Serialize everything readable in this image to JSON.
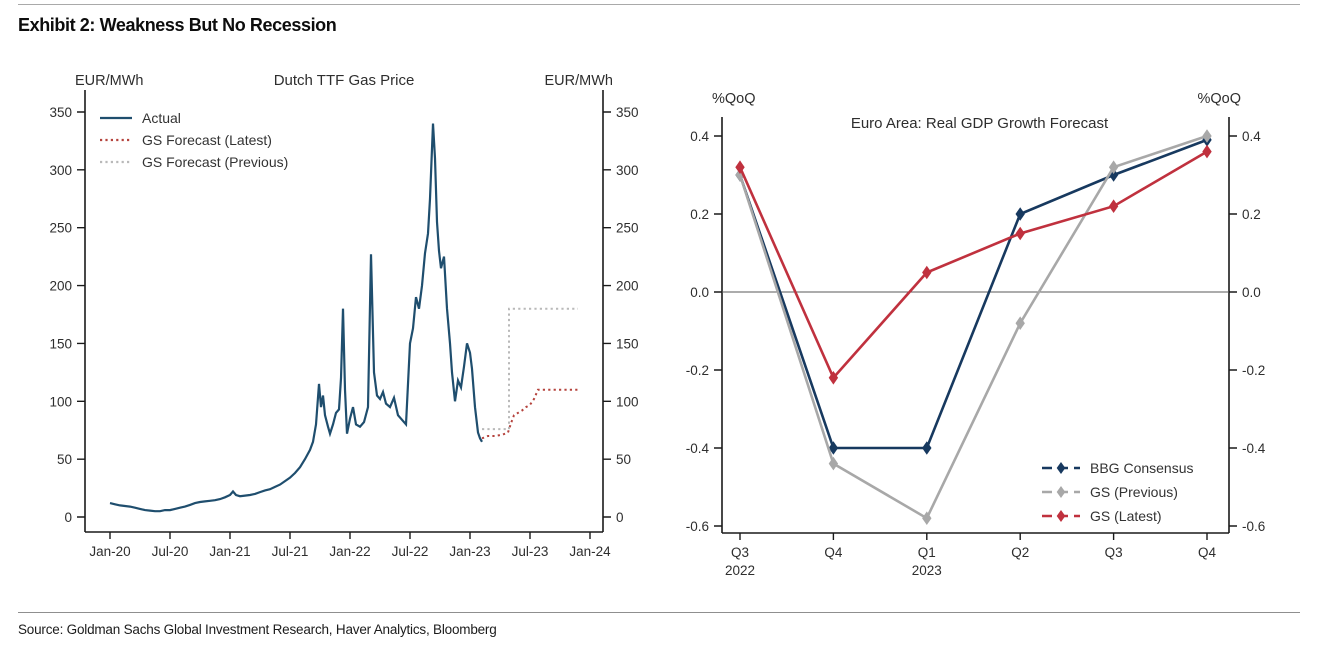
{
  "header": {
    "title": "Exhibit 2: Weakness But No Recession"
  },
  "footer": {
    "source": "Source: Goldman Sachs Global Investment Research, Haver Analytics, Bloomberg"
  },
  "chart_data": [
    {
      "id": "ttf",
      "type": "line",
      "title": "Dutch TTF Gas Price",
      "unit_label_left": "EUR/MWh",
      "unit_label_right": "EUR/MWh",
      "x_tick_labels": [
        "Jan-20",
        "Jul-20",
        "Jan-21",
        "Jul-21",
        "Jan-22",
        "Jul-22",
        "Jan-23",
        "Jul-23",
        "Jan-24"
      ],
      "x_unit": "months_since_Jan-2020",
      "xlim": [
        0,
        49.3
      ],
      "ylim": [
        0,
        350
      ],
      "y_ticks": [
        0,
        50,
        100,
        150,
        200,
        250,
        300,
        350
      ],
      "grid": false,
      "legend_position": "top-left",
      "series": [
        {
          "name": "Actual",
          "color": "#1f4e6e",
          "line_style": "solid",
          "points": [
            [
              0,
              12
            ],
            [
              0.5,
              11
            ],
            [
              1,
              10
            ],
            [
              1.5,
              9.5
            ],
            [
              2,
              9
            ],
            [
              2.5,
              8
            ],
            [
              3,
              7
            ],
            [
              3.5,
              6
            ],
            [
              4,
              5.5
            ],
            [
              4.5,
              5
            ],
            [
              5,
              5
            ],
            [
              5.5,
              6
            ],
            [
              6,
              6
            ],
            [
              6.5,
              7
            ],
            [
              7,
              8
            ],
            [
              7.5,
              9
            ],
            [
              8,
              10.5
            ],
            [
              8.5,
              12
            ],
            [
              9,
              13
            ],
            [
              9.5,
              13.5
            ],
            [
              10,
              14
            ],
            [
              10.5,
              14.5
            ],
            [
              11,
              15.5
            ],
            [
              11.5,
              17
            ],
            [
              12,
              19
            ],
            [
              12.3,
              22
            ],
            [
              12.6,
              19
            ],
            [
              13,
              18
            ],
            [
              13.5,
              18.5
            ],
            [
              14,
              19
            ],
            [
              14.5,
              20
            ],
            [
              15,
              21.5
            ],
            [
              15.5,
              23
            ],
            [
              16,
              24
            ],
            [
              16.5,
              26
            ],
            [
              17,
              28
            ],
            [
              17.5,
              31
            ],
            [
              18,
              34
            ],
            [
              18.5,
              38
            ],
            [
              19,
              43
            ],
            [
              19.5,
              50
            ],
            [
              20,
              58
            ],
            [
              20.3,
              65
            ],
            [
              20.6,
              80
            ],
            [
              20.9,
              115
            ],
            [
              21.1,
              95
            ],
            [
              21.3,
              105
            ],
            [
              21.5,
              88
            ],
            [
              21.8,
              78
            ],
            [
              22,
              72
            ],
            [
              22.3,
              80
            ],
            [
              22.6,
              90
            ],
            [
              22.9,
              93
            ],
            [
              23.1,
              120
            ],
            [
              23.3,
              180
            ],
            [
              23.5,
              110
            ],
            [
              23.7,
              72
            ],
            [
              24,
              85
            ],
            [
              24.3,
              95
            ],
            [
              24.6,
              80
            ],
            [
              25,
              78
            ],
            [
              25.4,
              82
            ],
            [
              25.8,
              95
            ],
            [
              26.1,
              227
            ],
            [
              26.4,
              125
            ],
            [
              26.7,
              105
            ],
            [
              27,
              102
            ],
            [
              27.3,
              108
            ],
            [
              27.6,
              98
            ],
            [
              28,
              95
            ],
            [
              28.4,
              103
            ],
            [
              28.8,
              88
            ],
            [
              29.2,
              84
            ],
            [
              29.6,
              80
            ],
            [
              30,
              150
            ],
            [
              30.3,
              163
            ],
            [
              30.6,
              190
            ],
            [
              30.9,
              180
            ],
            [
              31.2,
              200
            ],
            [
              31.5,
              228
            ],
            [
              31.8,
              245
            ],
            [
              32,
              275
            ],
            [
              32.3,
              340
            ],
            [
              32.5,
              310
            ],
            [
              32.7,
              255
            ],
            [
              32.9,
              230
            ],
            [
              33.1,
              215
            ],
            [
              33.4,
              225
            ],
            [
              33.7,
              180
            ],
            [
              34,
              150
            ],
            [
              34.2,
              125
            ],
            [
              34.5,
              100
            ],
            [
              34.8,
              118
            ],
            [
              35.1,
              112
            ],
            [
              35.4,
              130
            ],
            [
              35.7,
              150
            ],
            [
              36,
              142
            ],
            [
              36.2,
              128
            ],
            [
              36.5,
              95
            ],
            [
              36.8,
              73
            ],
            [
              37,
              68
            ],
            [
              37.2,
              65
            ]
          ]
        },
        {
          "name": "GS Forecast (Latest)",
          "color": "#b5433d",
          "line_style": "dotted",
          "points": [
            [
              37.2,
              68
            ],
            [
              37.8,
              70
            ],
            [
              38.5,
              70
            ],
            [
              39.2,
              71
            ],
            [
              39.8,
              73
            ],
            [
              40.1,
              81
            ],
            [
              40.4,
              88
            ],
            [
              40.8,
              90
            ],
            [
              41.2,
              92
            ],
            [
              41.6,
              95
            ],
            [
              42,
              97
            ],
            [
              42.4,
              102
            ],
            [
              42.8,
              110
            ],
            [
              43.5,
              110
            ],
            [
              44.5,
              110
            ],
            [
              45.5,
              110
            ],
            [
              46.8,
              110
            ]
          ]
        },
        {
          "name": "GS Forecast (Previous)",
          "color": "#b9b9b9",
          "line_style": "dotted",
          "points": [
            [
              37.2,
              76
            ],
            [
              39.9,
              76
            ],
            [
              39.9,
              180
            ],
            [
              46.8,
              180
            ]
          ]
        }
      ]
    },
    {
      "id": "gdp",
      "type": "line",
      "title": "Euro Area: Real GDP Growth Forecast",
      "unit_label_left": "%QoQ",
      "unit_label_right": "%QoQ",
      "categories": [
        "Q3",
        "Q4",
        "Q1",
        "Q2",
        "Q3",
        "Q4"
      ],
      "category_year_labels": [
        {
          "index": 0,
          "label": "2022"
        },
        {
          "index": 2,
          "label": "2023"
        }
      ],
      "ylim": [
        -0.66,
        0.46
      ],
      "y_ticks": [
        0.4,
        0.2,
        0.0,
        -0.2,
        -0.4,
        -0.6
      ],
      "y_tick_labels": [
        "0.4",
        "0.2",
        "0.0",
        "-0.2",
        "-0.4",
        "-0.6"
      ],
      "zero_line": true,
      "marker": "diamond",
      "grid": false,
      "legend_position": "bottom-right",
      "series": [
        {
          "name": "BBG Consensus",
          "color": "#17395f",
          "values": [
            0.3,
            -0.4,
            -0.4,
            0.2,
            0.3,
            0.39
          ]
        },
        {
          "name": "GS (Previous)",
          "color": "#a8a8a8",
          "values": [
            0.3,
            -0.44,
            -0.58,
            -0.08,
            0.32,
            0.4
          ]
        },
        {
          "name": "GS (Latest)",
          "color": "#c0313e",
          "values": [
            0.32,
            -0.22,
            0.05,
            0.15,
            0.22,
            0.36
          ]
        }
      ]
    }
  ]
}
